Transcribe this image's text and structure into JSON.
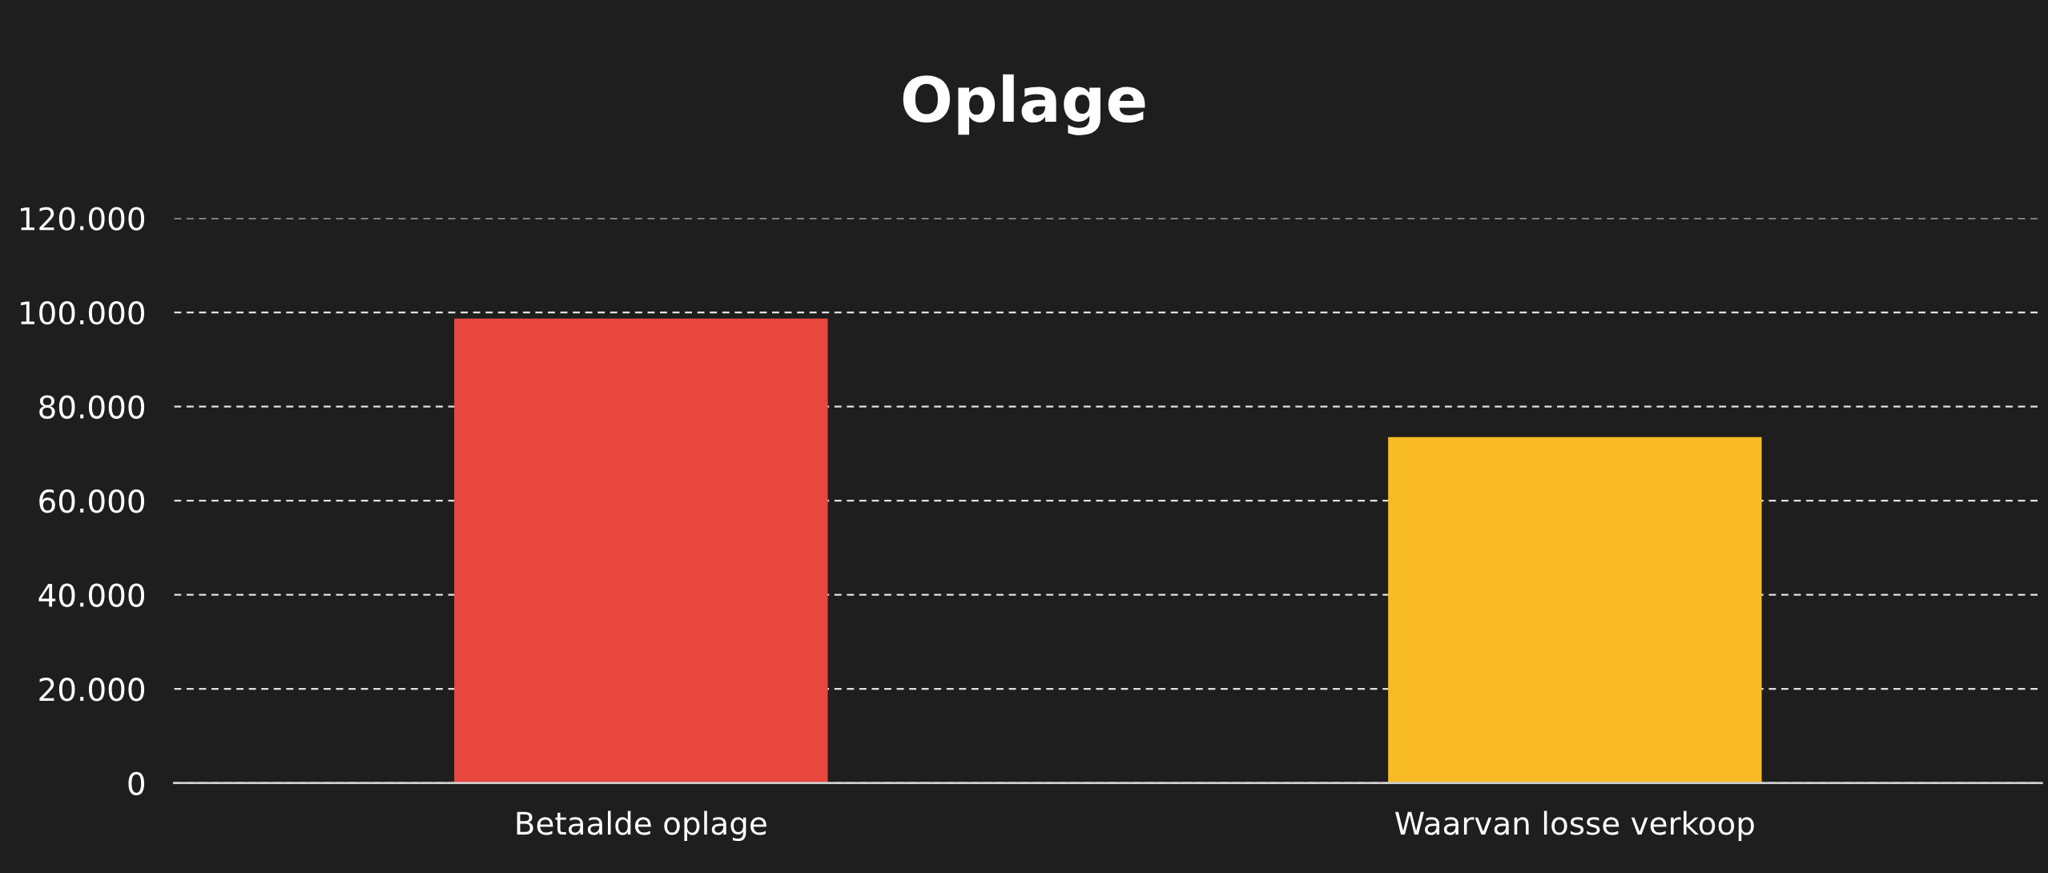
{
  "chart_data": {
    "type": "bar",
    "title": "Oplage",
    "categories": [
      "Betaalde oplage",
      "Waarvan losse verkoop"
    ],
    "values": [
      98700,
      73500
    ],
    "colors": [
      "#e8473f",
      "#f9bb25"
    ],
    "ylim": [
      0,
      120000
    ],
    "yticks": [
      {
        "value": 0,
        "label": "0"
      },
      {
        "value": 20000,
        "label": "20.000"
      },
      {
        "value": 40000,
        "label": "40.000"
      },
      {
        "value": 60000,
        "label": "60.000"
      },
      {
        "value": 80000,
        "label": "80.000"
      },
      {
        "value": 100000,
        "label": "100.000"
      },
      {
        "value": 120000,
        "label": "120.000"
      }
    ],
    "grid": "y"
  }
}
